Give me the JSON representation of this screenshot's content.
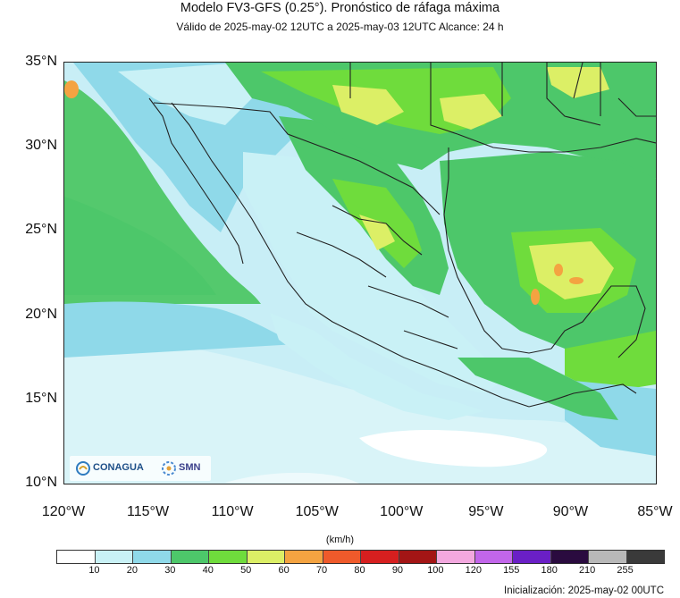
{
  "header": {
    "title": "Modelo FV3-GFS (0.25°). Pronóstico de ráfaga máxima",
    "subtitle": "Válido de 2025-may-02 12UTC a 2025-may-03 12UTC    Alcance: 24 h"
  },
  "map": {
    "lat_labels": [
      "35°N",
      "30°N",
      "25°N",
      "20°N",
      "15°N",
      "10°N"
    ],
    "lon_labels": [
      "120°W",
      "115°W",
      "110°W",
      "105°W",
      "100°W",
      "95°W",
      "90°W",
      "85°W"
    ],
    "extent": {
      "lon": [
        -120,
        -85
      ],
      "lat": [
        10,
        35
      ]
    },
    "field": "ráfaga máxima"
  },
  "legend": {
    "units": "(km/h)",
    "ticks": [
      "10",
      "20",
      "30",
      "40",
      "50",
      "60",
      "70",
      "80",
      "90",
      "100",
      "120",
      "155",
      "180",
      "210",
      "255"
    ],
    "colors": [
      "#ffffff",
      "#c9f1f6",
      "#8fd9e9",
      "#4dc76a",
      "#6fdc3c",
      "#dcef66",
      "#f4a341",
      "#ef5a2b",
      "#d61f1f",
      "#a31515",
      "#f3a8df",
      "#c266ea",
      "#6a1fc6",
      "#2a0b3f",
      "#b8b8b8",
      "#3a3a3a"
    ]
  },
  "logos": {
    "conagua": "CONAGUA",
    "smn": "SMN"
  },
  "footer": {
    "initialization": "Inicialización: 2025-may-02 00UTC"
  }
}
